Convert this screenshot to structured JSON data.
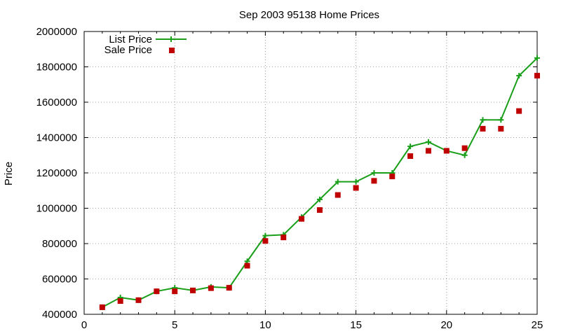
{
  "chart_data": {
    "type": "line",
    "title": "Sep 2003 95138 Home Prices",
    "xlabel": "",
    "ylabel": "Price",
    "xlim": [
      0,
      25
    ],
    "ylim": [
      400000,
      2000000
    ],
    "xticks": [
      0,
      5,
      10,
      15,
      20,
      25
    ],
    "yticks": [
      400000,
      600000,
      800000,
      1000000,
      1200000,
      1400000,
      1600000,
      1800000,
      2000000
    ],
    "grid": true,
    "legend_position": "top-left",
    "series": [
      {
        "name": "List Price",
        "style": "line-with-plus-markers",
        "color": "#1a9f1a",
        "x": [
          1,
          2,
          3,
          4,
          5,
          6,
          7,
          8,
          9,
          10,
          11,
          12,
          13,
          14,
          15,
          16,
          17,
          18,
          19,
          20,
          21,
          22,
          23,
          24,
          25
        ],
        "values": [
          440000,
          495000,
          480000,
          530000,
          550000,
          535000,
          555000,
          550000,
          700000,
          845000,
          850000,
          950000,
          1050000,
          1150000,
          1150000,
          1200000,
          1200000,
          1350000,
          1375000,
          1325000,
          1300000,
          1500000,
          1500000,
          1750000,
          1850000
        ]
      },
      {
        "name": "Sale Price",
        "style": "square-markers",
        "color": "#c00000",
        "x": [
          1,
          2,
          3,
          4,
          5,
          6,
          7,
          8,
          9,
          10,
          11,
          12,
          13,
          14,
          15,
          16,
          17,
          18,
          19,
          20,
          21,
          22,
          23,
          24,
          25
        ],
        "values": [
          440000,
          475000,
          480000,
          530000,
          530000,
          535000,
          548000,
          550000,
          675000,
          815000,
          835000,
          940000,
          990000,
          1075000,
          1115000,
          1155000,
          1180000,
          1295000,
          1325000,
          1325000,
          1340000,
          1450000,
          1450000,
          1550000,
          1750000
        ]
      }
    ]
  }
}
